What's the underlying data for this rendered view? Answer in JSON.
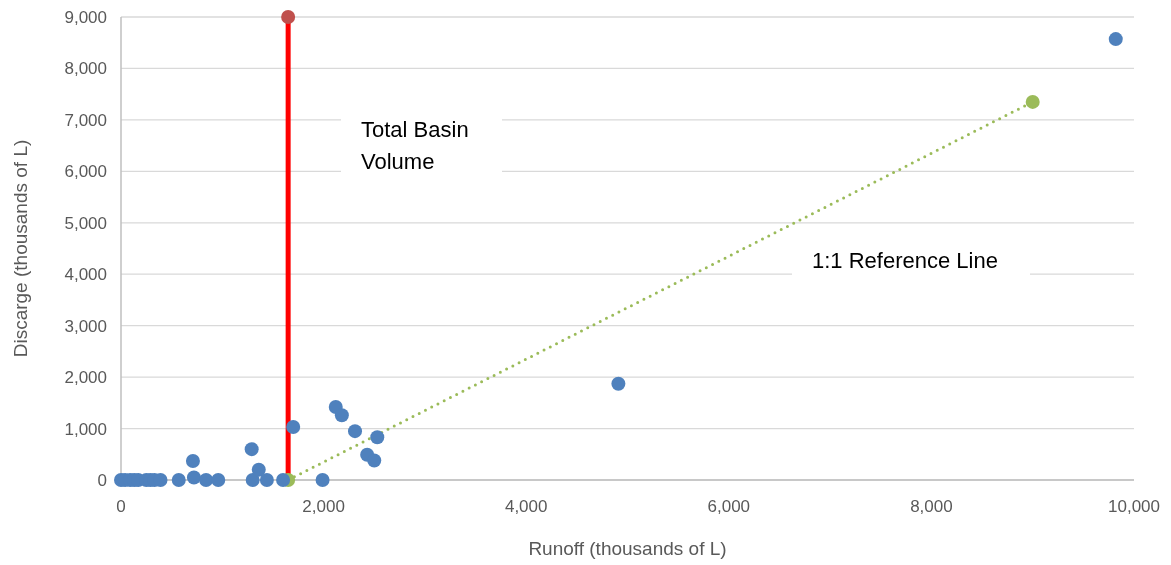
{
  "chart_data": {
    "type": "scatter",
    "xlabel": "Runoff (thousands of L)",
    "ylabel": "Discarge (thousands of L)",
    "xlim": [
      0,
      10000
    ],
    "xticks": [
      {
        "value": 0,
        "label": "0"
      },
      {
        "value": 2000,
        "label": "2,000"
      },
      {
        "value": 4000,
        "label": "4,000"
      },
      {
        "value": 6000,
        "label": "6,000"
      },
      {
        "value": 8000,
        "label": "8,000"
      },
      {
        "value": 10000,
        "label": "10,000"
      }
    ],
    "ylim": [
      0,
      9000
    ],
    "yticks": [
      {
        "value": 0,
        "label": "0"
      },
      {
        "value": 1000,
        "label": "1,000"
      },
      {
        "value": 2000,
        "label": "2,000"
      },
      {
        "value": 3000,
        "label": "3,000"
      },
      {
        "value": 4000,
        "label": "4,000"
      },
      {
        "value": 5000,
        "label": "5,000"
      },
      {
        "value": 6000,
        "label": "6,000"
      },
      {
        "value": 7000,
        "label": "7,000"
      },
      {
        "value": 8000,
        "label": "8,000"
      },
      {
        "value": 9000,
        "label": "9,000"
      }
    ],
    "grid": "y",
    "marker": "circle",
    "series": [
      {
        "type": "line",
        "color": "#ff0000",
        "x": [
          1650,
          1650
        ],
        "values": [
          0,
          9000
        ],
        "marker": "none",
        "line_style": "solid"
      },
      {
        "type": "scatter",
        "color": "#c0504d",
        "x": [
          1650
        ],
        "values": [
          9000
        ]
      },
      {
        "type": "line",
        "color": "#9bbb59",
        "x": [
          1650,
          9000
        ],
        "values": [
          0,
          7350
        ],
        "line_style": "dotted"
      },
      {
        "color": "#4f81bd",
        "x": [
          0,
          40,
          90,
          130,
          170,
          250,
          290,
          330,
          390,
          570,
          710,
          720,
          840,
          960,
          1290,
          1300,
          1360,
          1440,
          1600,
          1700,
          1990,
          2120,
          2180,
          2310,
          2430,
          2500,
          2530,
          4910,
          9820
        ],
        "values": [
          0,
          0,
          0,
          0,
          0,
          0,
          0,
          0,
          0,
          0,
          370,
          50,
          0,
          0,
          600,
          0,
          200,
          0,
          0,
          1030,
          0,
          1420,
          1260,
          950,
          490,
          380,
          830,
          1870,
          8570
        ]
      }
    ],
    "annotations": [
      "Total Basin Volume",
      "1:1 Reference Line"
    ]
  }
}
